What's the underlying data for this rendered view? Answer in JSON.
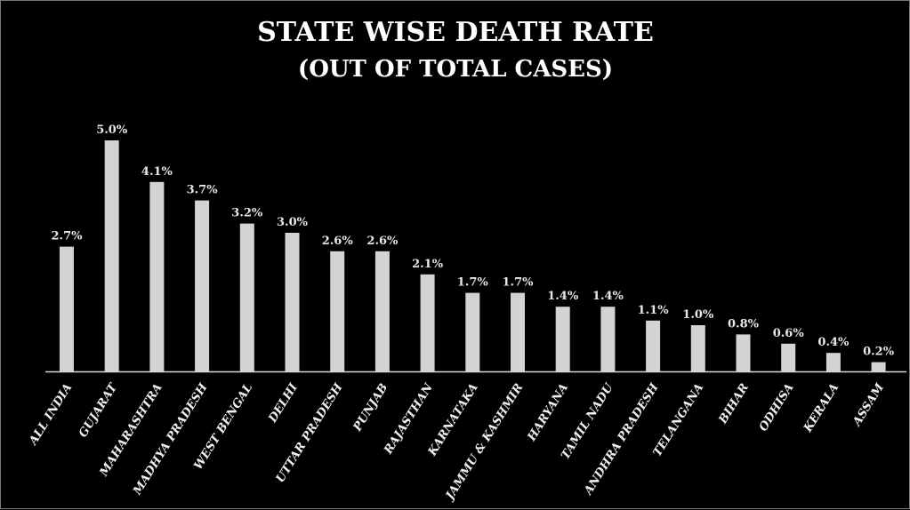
{
  "chart_data": {
    "type": "bar",
    "title": "STATE WISE DEATH RATE",
    "subtitle": "(OUT OF TOTAL CASES)",
    "xlabel": "",
    "ylabel": "",
    "ylim": [
      0,
      5.0
    ],
    "grid": false,
    "legend": "none",
    "bar_color": "#d3d3d3",
    "categories": [
      "ALL INDIA",
      "GUJARAT",
      "MAHARASHTRA",
      "MADHYA PRADESH",
      "WEST BENGAL",
      "DELHI",
      "UTTAR PRADESH",
      "PUNJAB",
      "RAJASTHAN",
      "KARNATAKA",
      "JAMMU & KASHMIR",
      "HARYANA",
      "TAMIL NADU",
      "ANDHRA PRADESH",
      "TELANGANA",
      "BIHAR",
      "ODHISA",
      "KERALA",
      "ASSAM"
    ],
    "values": [
      2.7,
      5.0,
      4.1,
      3.7,
      3.2,
      3.0,
      2.6,
      2.6,
      2.1,
      1.7,
      1.7,
      1.4,
      1.4,
      1.1,
      1.0,
      0.8,
      0.6,
      0.4,
      0.2
    ],
    "data_labels": [
      "2.7%",
      "5.0%",
      "4.1%",
      "3.7%",
      "3.2%",
      "3.0%",
      "2.6%",
      "2.6%",
      "2.1%",
      "1.7%",
      "1.7%",
      "1.4%",
      "1.4%",
      "1.1%",
      "1.0%",
      "0.8%",
      "0.6%",
      "0.4%",
      "0.2%"
    ]
  }
}
